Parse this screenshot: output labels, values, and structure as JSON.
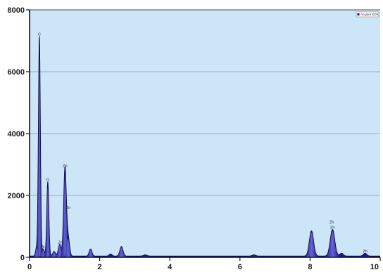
{
  "chart_data": {
    "type": "area",
    "title": "",
    "xlabel": "",
    "ylabel": "",
    "xlim": [
      0,
      10
    ],
    "ylim": [
      0,
      8000
    ],
    "x_ticks": [
      0,
      2,
      4,
      6,
      8,
      10
    ],
    "x_tick_labels": [
      "0",
      "2",
      "4",
      "6",
      "8",
      "10"
    ],
    "y_ticks": [
      0,
      2000,
      4000,
      6000,
      8000
    ],
    "y_tick_labels": [
      "0",
      "2000",
      "4000",
      "6000",
      "8000"
    ],
    "grid": "horizontal",
    "legend": {
      "position": "top-right",
      "entries": [
        "Acquire EDX"
      ]
    },
    "series": [
      {
        "name": "Acquire EDX",
        "peaks": [
          {
            "x": 0.28,
            "y": 7100,
            "width": 0.028
          },
          {
            "x": 0.2,
            "y": 260,
            "width": 0.03
          },
          {
            "x": 0.39,
            "y": 230,
            "width": 0.03
          },
          {
            "x": 0.52,
            "y": 2400,
            "width": 0.03
          },
          {
            "x": 0.7,
            "y": 150,
            "width": 0.04
          },
          {
            "x": 0.86,
            "y": 380,
            "width": 0.04
          },
          {
            "x": 1.01,
            "y": 2850,
            "width": 0.038
          },
          {
            "x": 1.1,
            "y": 600,
            "width": 0.04
          },
          {
            "x": 1.74,
            "y": 230,
            "width": 0.04
          },
          {
            "x": 2.31,
            "y": 70,
            "width": 0.04
          },
          {
            "x": 2.62,
            "y": 310,
            "width": 0.045
          },
          {
            "x": 3.3,
            "y": 40,
            "width": 0.05
          },
          {
            "x": 6.4,
            "y": 40,
            "width": 0.05
          },
          {
            "x": 8.04,
            "y": 820,
            "width": 0.06
          },
          {
            "x": 8.64,
            "y": 860,
            "width": 0.065
          },
          {
            "x": 8.9,
            "y": 90,
            "width": 0.05
          },
          {
            "x": 9.57,
            "y": 90,
            "width": 0.05
          }
        ],
        "baseline": 40
      }
    ],
    "annotations": [
      {
        "text": "C",
        "x": 0.28,
        "y": 7100
      },
      {
        "text": "N",
        "x": 0.39,
        "y": 230
      },
      {
        "text": "O",
        "x": 0.52,
        "y": 2400
      },
      {
        "text": "Zn",
        "x": 0.88,
        "y": 380
      },
      {
        "text": "Zn",
        "x": 1.01,
        "y": 2850
      },
      {
        "text": "Zn",
        "x": 1.1,
        "y": 1500
      },
      {
        "text": "Zn",
        "x": 8.62,
        "y": 1030
      },
      {
        "text": "Zn",
        "x": 8.64,
        "y": 860
      },
      {
        "text": "Zn",
        "x": 9.57,
        "y": 90
      }
    ],
    "colors": {
      "plot_background": "#cce5f7",
      "fill": "#1c1a8f",
      "fill_highlight": "#7070d8",
      "outline": "#0d0b45",
      "gridline": "#8a9aa8",
      "axis": "#111111"
    }
  }
}
